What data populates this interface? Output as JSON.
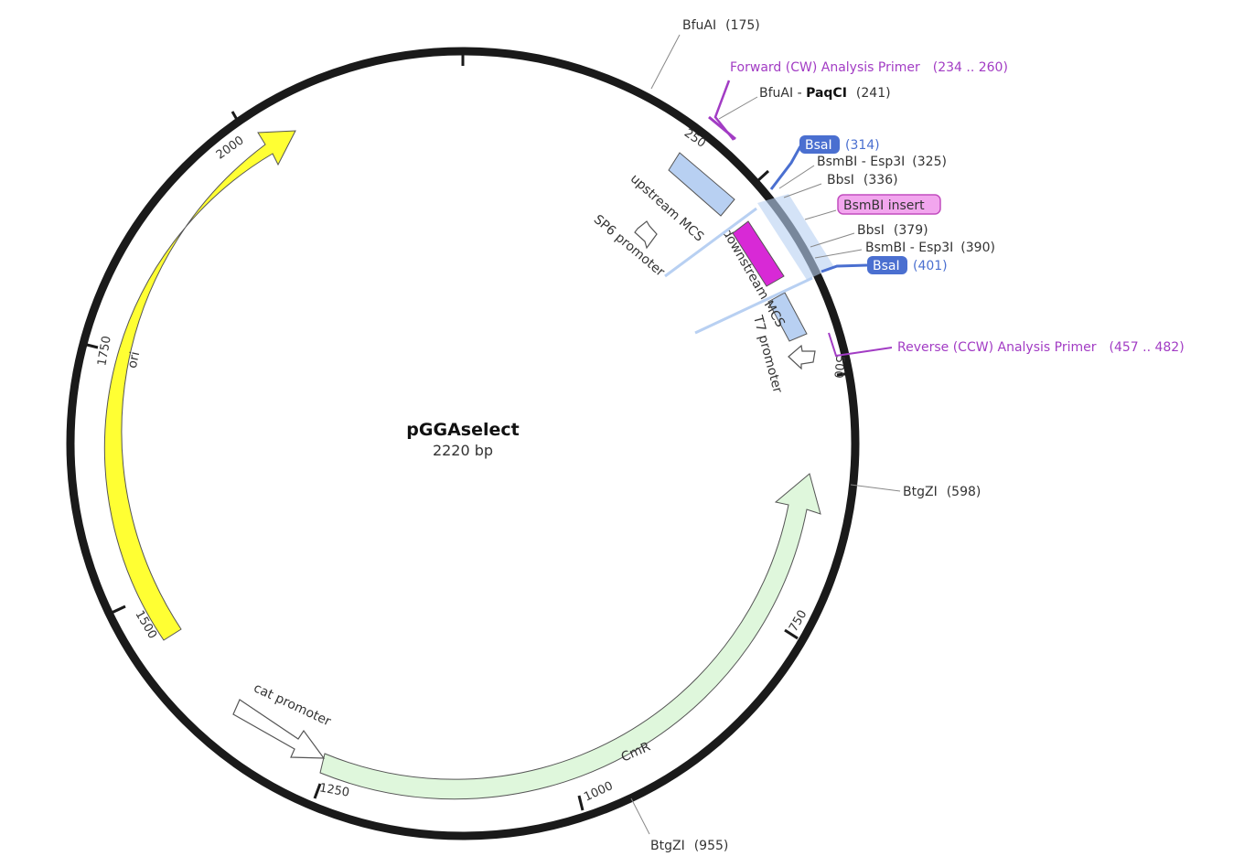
{
  "map": {
    "name": "pGGAselect",
    "length_label": "2220 bp"
  },
  "ticks": [
    "250",
    "500",
    "750",
    "1000",
    "1250",
    "1500",
    "1750",
    "2000"
  ],
  "features": {
    "ori": "ori",
    "cmr": "CmR",
    "cat_promoter": "cat promoter",
    "upstream_mcs": "upstream MCS",
    "downstream_mcs": "downstream MCS",
    "sp6_promoter": "SP6 promoter",
    "t7_promoter": "T7 promoter"
  },
  "sites": {
    "bfuai_175": {
      "name": "BfuAI",
      "pos": "(175)"
    },
    "forward_primer": {
      "name": "Forward (CW) Analysis Primer",
      "pos": "(234 .. 260)"
    },
    "bfuai_paqci": {
      "name": "BfuAI - ",
      "bold": "PaqCI",
      "pos": "(241)"
    },
    "bsai_314": {
      "name": "BsaI",
      "pos": "(314)"
    },
    "bsmbi_325": {
      "name": "BsmBI - Esp3I",
      "pos": "(325)"
    },
    "bbsi_336": {
      "name": "BbsI",
      "pos": "(336)"
    },
    "bsmbi_insert": {
      "name": "BsmBI insert"
    },
    "bbsi_379": {
      "name": "BbsI",
      "pos": "(379)"
    },
    "bsmbi_390": {
      "name": "BsmBI - Esp3I",
      "pos": "(390)"
    },
    "bsai_401": {
      "name": "BsaI",
      "pos": "(401)"
    },
    "reverse_primer": {
      "name": "Reverse (CCW) Analysis Primer",
      "pos": "(457 .. 482)"
    },
    "btgzi_598": {
      "name": "BtgZI",
      "pos": "(598)"
    },
    "btgzi_955": {
      "name": "BtgZI",
      "pos": "(955)"
    }
  },
  "colors": {
    "backbone": "#1a1a1a",
    "ori": "#ffff33",
    "cmr": "#dff7dc",
    "mcs": "#b8d0f2",
    "insert": "#d829d6",
    "primer": "#a23cc4",
    "bsai": "#4a6fd0",
    "insert_badge": "#f2a6ee"
  }
}
